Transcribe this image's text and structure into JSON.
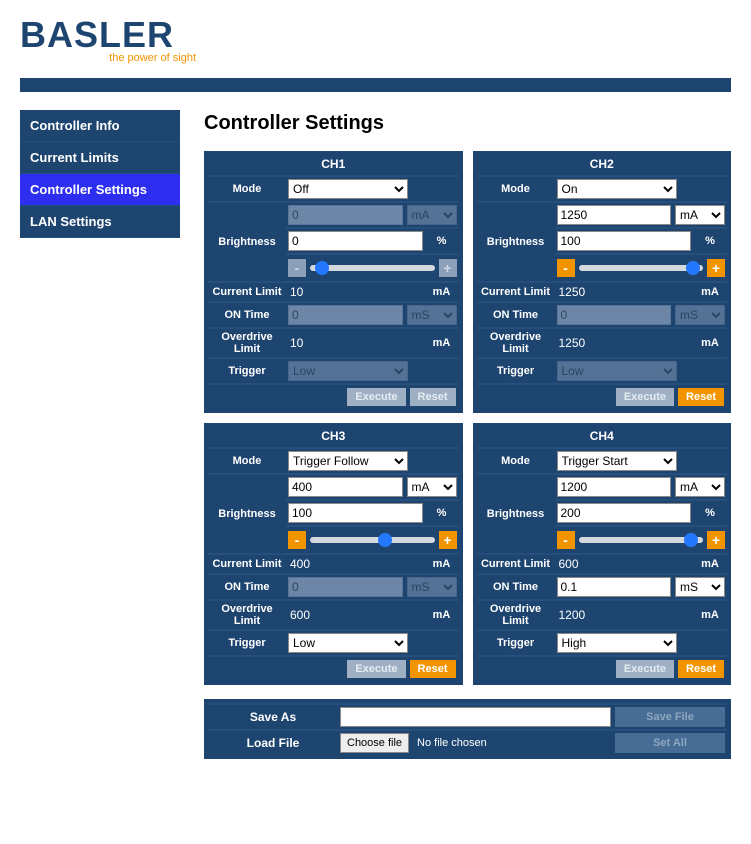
{
  "brand": {
    "name": "BASLER",
    "tagline": "the power of sight",
    "swoosh_color": "#f29400",
    "text_color": "#1e4570"
  },
  "header_bar_color": "#1e4570",
  "page_title": "Controller Settings",
  "nav": {
    "items": [
      {
        "label": "Controller Info",
        "active": false
      },
      {
        "label": "Current Limits",
        "active": false
      },
      {
        "label": "Controller Settings",
        "active": true
      },
      {
        "label": "LAN Settings",
        "active": false
      }
    ],
    "bg": "#1e4570",
    "active_bg": "#2e2ef0"
  },
  "labels": {
    "mode": "Mode",
    "brightness": "Brightness",
    "current_limit": "Current Limit",
    "on_time": "ON Time",
    "overdrive_limit": "Overdrive Limit",
    "trigger": "Trigger",
    "execute": "Execute",
    "reset": "Reset",
    "pct": "%",
    "ma": "mA",
    "ms": "mS",
    "save_as": "Save As",
    "load_file": "Load File",
    "save_file": "Save File",
    "set_all": "Set All",
    "choose_file": "Choose file",
    "no_file": "No file chosen"
  },
  "mode_options": [
    "Off",
    "On",
    "Trigger Follow",
    "Trigger Start"
  ],
  "ma_options": [
    "mA"
  ],
  "ms_options": [
    "mS"
  ],
  "trigger_options": [
    "Low",
    "High"
  ],
  "channels": [
    {
      "id": "CH1",
      "mode": "Off",
      "brightness": {
        "ma_value": "0",
        "ma_enabled": false,
        "ma_unit_enabled": false,
        "pct_value": "0",
        "slider_pct": 10,
        "pm_enabled": false
      },
      "current_limit": "10",
      "on_time": {
        "value": "0",
        "enabled": false,
        "unit_enabled": false
      },
      "overdrive_limit": "10",
      "trigger": {
        "value": "Low",
        "enabled": false
      },
      "execute_enabled": false,
      "reset_enabled": false
    },
    {
      "id": "CH2",
      "mode": "On",
      "brightness": {
        "ma_value": "1250",
        "ma_enabled": true,
        "ma_unit_enabled": true,
        "pct_value": "100",
        "slider_pct": 92,
        "pm_enabled": true
      },
      "current_limit": "1250",
      "on_time": {
        "value": "0",
        "enabled": false,
        "unit_enabled": false
      },
      "overdrive_limit": "1250",
      "trigger": {
        "value": "Low",
        "enabled": false
      },
      "execute_enabled": false,
      "reset_enabled": true
    },
    {
      "id": "CH3",
      "mode": "Trigger Follow",
      "brightness": {
        "ma_value": "400",
        "ma_enabled": true,
        "ma_unit_enabled": true,
        "pct_value": "100",
        "slider_pct": 60,
        "pm_enabled": true
      },
      "current_limit": "400",
      "on_time": {
        "value": "0",
        "enabled": false,
        "unit_enabled": false
      },
      "overdrive_limit": "600",
      "trigger": {
        "value": "Low",
        "enabled": true
      },
      "execute_enabled": false,
      "reset_enabled": true
    },
    {
      "id": "CH4",
      "mode": "Trigger Start",
      "brightness": {
        "ma_value": "1200",
        "ma_enabled": true,
        "ma_unit_enabled": true,
        "pct_value": "200",
        "slider_pct": 90,
        "pm_enabled": true
      },
      "current_limit": "600",
      "on_time": {
        "value": "0.1",
        "enabled": true,
        "unit_enabled": true
      },
      "overdrive_limit": "1200",
      "trigger": {
        "value": "High",
        "enabled": true
      },
      "execute_enabled": false,
      "reset_enabled": true
    }
  ],
  "file": {
    "save_as_value": "",
    "save_file_enabled": false,
    "load_file_chosen": false,
    "set_all_enabled": false
  },
  "colors": {
    "panel": "#1e4570",
    "accent": "#f29400",
    "disabled_bg": "#6b86a6",
    "slider_thumb": "#2478ff"
  }
}
